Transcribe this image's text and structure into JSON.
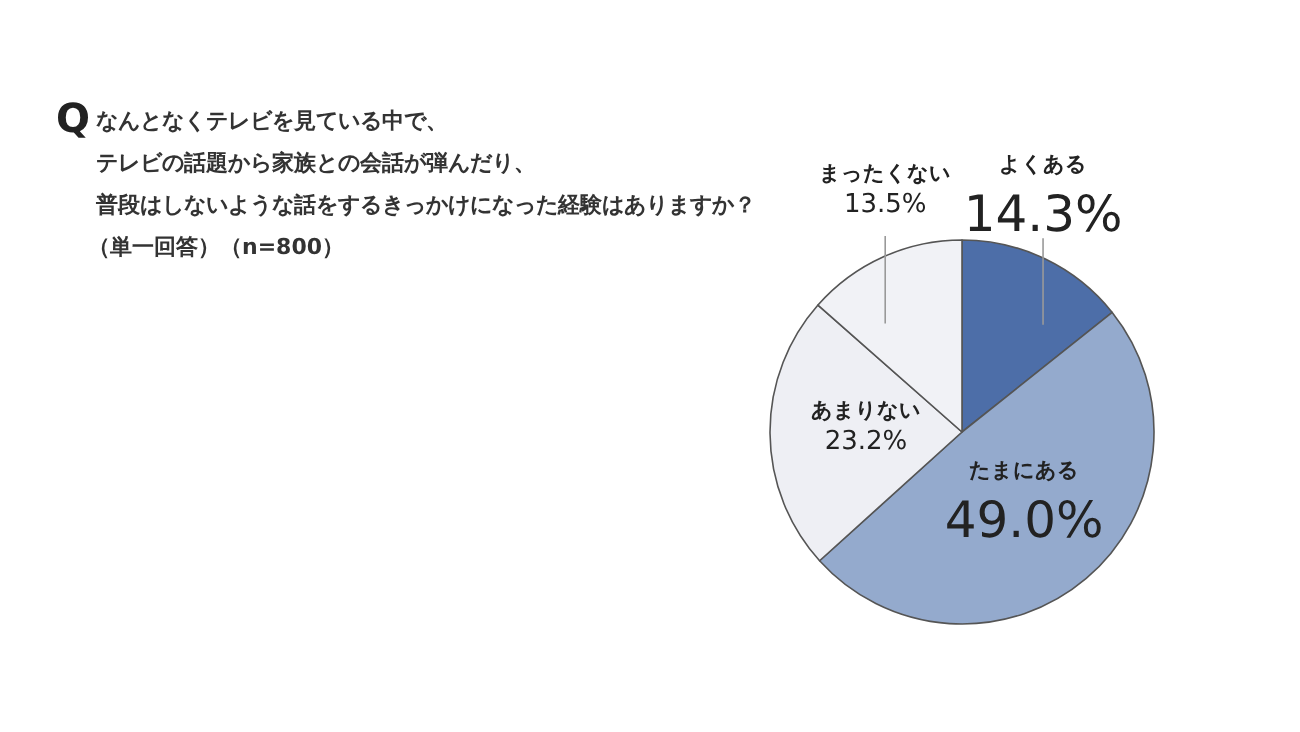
{
  "chart_data": {
    "type": "pie",
    "title": "なんとなくテレビを見ている中で、テレビの話題から家族との会話が弾んだり、普段はしないような話をするきっかけになった経験はありますか？",
    "subtitle": "（単一回答）（n=800）",
    "annotations": [
      "Q"
    ],
    "categories": [
      "よくある",
      "たまにある",
      "あまりない",
      "まったくない"
    ],
    "values": [
      14.3,
      49.0,
      23.2,
      13.5
    ],
    "value_labels": [
      "14.3%",
      "49.0%",
      "23.2%",
      "13.5%"
    ],
    "colors": [
      "#4d6ea8",
      "#94aacd",
      "#eeeff4",
      "#f1f2f6"
    ]
  }
}
